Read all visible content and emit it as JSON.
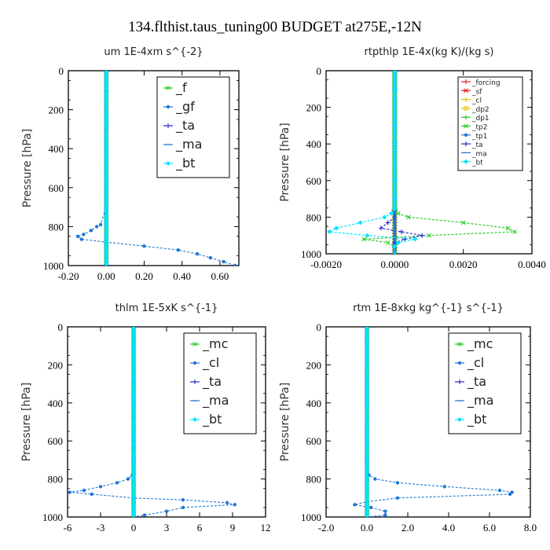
{
  "figure_title": "134.flthist.taus_tuning00  BUDGET at275E,-12N",
  "chart_data": [
    {
      "type": "line",
      "title": "um   1E-4xm s^{-2}",
      "ylabel": "Pressure [hPa]",
      "xlim": [
        -0.2,
        0.7
      ],
      "ylim": [
        1000,
        0
      ],
      "xticks": [
        -0.2,
        0.0,
        0.2,
        0.4,
        0.6
      ],
      "xtick_labels": [
        "-0.20",
        "0.00",
        "0.20",
        "0.40",
        "0.60"
      ],
      "yticks": [
        0,
        200,
        400,
        600,
        800,
        1000
      ],
      "ytick_labels": [
        "0",
        "200",
        "400",
        "600",
        "800",
        "1000"
      ],
      "legend_position": "top-right",
      "legend_size": "large",
      "series": [
        {
          "name": "_f",
          "color": "#22cc22",
          "marker": "x",
          "y": [
            5,
            100,
            200,
            300,
            400,
            500,
            600,
            700,
            800,
            900,
            1000
          ],
          "x": [
            0,
            0,
            0,
            0,
            0,
            0,
            0,
            0,
            0,
            0,
            0
          ]
        },
        {
          "name": "_gf",
          "color": "#1f77d4",
          "marker": "dot",
          "y": [
            5,
            100,
            200,
            300,
            400,
            500,
            600,
            700,
            790,
            800,
            820,
            840,
            850,
            865,
            880,
            900,
            920,
            940,
            960,
            980,
            1000
          ],
          "x": [
            0,
            0,
            0,
            0,
            0,
            0,
            0,
            0,
            -0.03,
            -0.05,
            -0.08,
            -0.12,
            -0.15,
            -0.13,
            0.0,
            0.2,
            0.38,
            0.48,
            0.55,
            0.62,
            0.68
          ]
        },
        {
          "name": "_ta",
          "color": "#2222cc",
          "marker": "plus",
          "y": [
            5,
            1000
          ],
          "x": [
            0,
            0
          ]
        },
        {
          "name": "_ma",
          "color": "#1f77d4",
          "marker": "dash",
          "y": [
            5,
            1000
          ],
          "x": [
            0,
            0
          ]
        },
        {
          "name": "_bt",
          "color": "#00e5ff",
          "marker": "diamond",
          "y": [
            5,
            1000
          ],
          "x": [
            0,
            0
          ]
        }
      ]
    },
    {
      "type": "line",
      "title": "rtpthlp   1E-4x(kg K)/(kg s)",
      "ylabel": "Pressure [hPa]",
      "xlim": [
        -0.002,
        0.004
      ],
      "ylim": [
        1000,
        0
      ],
      "xticks": [
        -0.002,
        0.0,
        0.002,
        0.004
      ],
      "xtick_labels": [
        "-0.0020",
        "0.0000",
        "0.0020",
        "0.0040"
      ],
      "yticks": [
        0,
        200,
        400,
        600,
        800,
        1000
      ],
      "ytick_labels": [
        "0",
        "200",
        "400",
        "600",
        "800",
        "1000"
      ],
      "legend_position": "top-right",
      "legend_size": "small",
      "series": [
        {
          "name": "_forcing",
          "color": "#e02020",
          "marker": "plus",
          "y": [
            5,
            1000
          ],
          "x": [
            0,
            0
          ]
        },
        {
          "name": "_sf",
          "color": "#e02020",
          "marker": "x",
          "y": [
            5,
            1000
          ],
          "x": [
            0,
            0
          ]
        },
        {
          "name": "_cl",
          "color": "#e8c000",
          "marker": "plus",
          "y": [
            5,
            1000
          ],
          "x": [
            0,
            0
          ]
        },
        {
          "name": "_dp2",
          "color": "#e8c000",
          "marker": "square",
          "y": [
            5,
            1000
          ],
          "x": [
            0,
            0
          ]
        },
        {
          "name": "_dp1",
          "color": "#22cc22",
          "marker": "plus",
          "y": [
            5,
            1000
          ],
          "x": [
            0,
            0
          ]
        },
        {
          "name": "_tp2",
          "color": "#22cc22",
          "marker": "x",
          "y": [
            5,
            100,
            200,
            300,
            400,
            500,
            600,
            700,
            780,
            800,
            830,
            860,
            880,
            900,
            920,
            940,
            960,
            1000
          ],
          "x": [
            0,
            0,
            0,
            0,
            0,
            0,
            0,
            0,
            0.0001,
            0.0004,
            0.002,
            0.0033,
            0.0035,
            0.001,
            -0.0009,
            -0.0002,
            0,
            0
          ]
        },
        {
          "name": "_tp1",
          "color": "#1f77d4",
          "marker": "dot",
          "y": [
            5,
            1000
          ],
          "x": [
            0,
            0
          ]
        },
        {
          "name": "_ta",
          "color": "#2222cc",
          "marker": "plus",
          "y": [
            5,
            100,
            200,
            300,
            400,
            500,
            600,
            700,
            800,
            830,
            860,
            880,
            900,
            920,
            940,
            960,
            1000
          ],
          "x": [
            0,
            0,
            0,
            0,
            0,
            0,
            0,
            0,
            0,
            -0.0002,
            -0.0004,
            0.0002,
            0.0008,
            0.0003,
            0,
            0,
            0
          ]
        },
        {
          "name": "_ma",
          "color": "#1f77d4",
          "marker": "dash",
          "y": [
            5,
            1000
          ],
          "x": [
            0,
            0
          ]
        },
        {
          "name": "_bt",
          "color": "#00e5ff",
          "marker": "diamond",
          "y": [
            5,
            100,
            200,
            300,
            400,
            500,
            600,
            700,
            780,
            800,
            830,
            860,
            880,
            900,
            920,
            940,
            960,
            1000
          ],
          "x": [
            0,
            0,
            0,
            0,
            0,
            0,
            0,
            0,
            -0.0001,
            -0.0003,
            -0.001,
            -0.0017,
            -0.0019,
            -0.0008,
            0.0006,
            0.0001,
            0,
            0
          ]
        }
      ]
    },
    {
      "type": "line",
      "title": "thlm   1E-5xK s^{-1}",
      "ylabel": "Pressure [hPa]",
      "xlim": [
        -6,
        12
      ],
      "ylim": [
        1000,
        0
      ],
      "xticks": [
        -6,
        -3,
        0,
        3,
        6,
        9,
        12
      ],
      "xtick_labels": [
        "-6",
        "-3",
        "0",
        "3",
        "6",
        "9",
        "12"
      ],
      "yticks": [
        0,
        200,
        400,
        600,
        800,
        1000
      ],
      "ytick_labels": [
        "0",
        "200",
        "400",
        "600",
        "800",
        "1000"
      ],
      "legend_position": "top-right",
      "legend_size": "large",
      "series": [
        {
          "name": "_mc",
          "color": "#22cc22",
          "marker": "x",
          "y": [
            5,
            100,
            200,
            300,
            400,
            500,
            600,
            700,
            800,
            900,
            1000
          ],
          "x": [
            0,
            0,
            0,
            0,
            0,
            0,
            0,
            0,
            0,
            0,
            0
          ]
        },
        {
          "name": "_cl",
          "color": "#1f77d4",
          "marker": "dot",
          "y": [
            5,
            100,
            200,
            300,
            400,
            500,
            600,
            700,
            780,
            800,
            820,
            840,
            860,
            870,
            880,
            900,
            910,
            925,
            935,
            950,
            970,
            990,
            1000
          ],
          "x": [
            0,
            0,
            0,
            0,
            0,
            0,
            0,
            0,
            -0.1,
            -0.5,
            -1.5,
            -3.0,
            -4.5,
            -5.8,
            -3.8,
            0.0,
            4.5,
            8.5,
            9.2,
            4.5,
            3.0,
            1.0,
            0.0
          ]
        },
        {
          "name": "_ta",
          "color": "#2222cc",
          "marker": "plus",
          "y": [
            5,
            1000
          ],
          "x": [
            0,
            0
          ]
        },
        {
          "name": "_ma",
          "color": "#1f77d4",
          "marker": "dash",
          "y": [
            5,
            1000
          ],
          "x": [
            0,
            0
          ]
        },
        {
          "name": "_bt",
          "color": "#00e5ff",
          "marker": "diamond",
          "y": [
            5,
            1000
          ],
          "x": [
            0,
            0
          ]
        }
      ]
    },
    {
      "type": "line",
      "title": "rtm   1E-8xkg kg^{-1} s^{-1}",
      "ylabel": "Pressure [hPa]",
      "xlim": [
        -2,
        8
      ],
      "ylim": [
        1000,
        0
      ],
      "xticks": [
        -2,
        0,
        2,
        4,
        6,
        8
      ],
      "xtick_labels": [
        "-2.0",
        "0.0",
        "2.0",
        "4.0",
        "6.0",
        "8.0"
      ],
      "yticks": [
        0,
        200,
        400,
        600,
        800,
        1000
      ],
      "ytick_labels": [
        "0",
        "200",
        "400",
        "600",
        "800",
        "1000"
      ],
      "legend_position": "top-right",
      "legend_size": "large",
      "series": [
        {
          "name": "_mc",
          "color": "#22cc22",
          "marker": "x",
          "y": [
            5,
            100,
            200,
            300,
            400,
            500,
            600,
            700,
            800,
            900,
            1000
          ],
          "x": [
            0,
            0,
            0,
            0,
            0,
            0,
            0,
            0,
            0,
            0,
            0
          ]
        },
        {
          "name": "_cl",
          "color": "#1f77d4",
          "marker": "dot",
          "y": [
            5,
            100,
            200,
            300,
            400,
            500,
            600,
            700,
            780,
            800,
            820,
            840,
            860,
            870,
            880,
            900,
            920,
            935,
            950,
            970,
            990,
            1000
          ],
          "x": [
            0,
            0,
            0,
            0,
            0,
            0,
            0,
            0,
            0.1,
            0.4,
            1.5,
            3.8,
            6.5,
            7.1,
            7.0,
            1.5,
            0.0,
            -0.6,
            0.2,
            0.9,
            0.9,
            0.0
          ]
        },
        {
          "name": "_ta",
          "color": "#2222cc",
          "marker": "plus",
          "y": [
            5,
            1000
          ],
          "x": [
            0,
            0
          ]
        },
        {
          "name": "_ma",
          "color": "#1f77d4",
          "marker": "dash",
          "y": [
            5,
            1000
          ],
          "x": [
            0,
            0
          ]
        },
        {
          "name": "_bt",
          "color": "#00e5ff",
          "marker": "diamond",
          "y": [
            5,
            1000
          ],
          "x": [
            0,
            0
          ]
        }
      ]
    }
  ]
}
